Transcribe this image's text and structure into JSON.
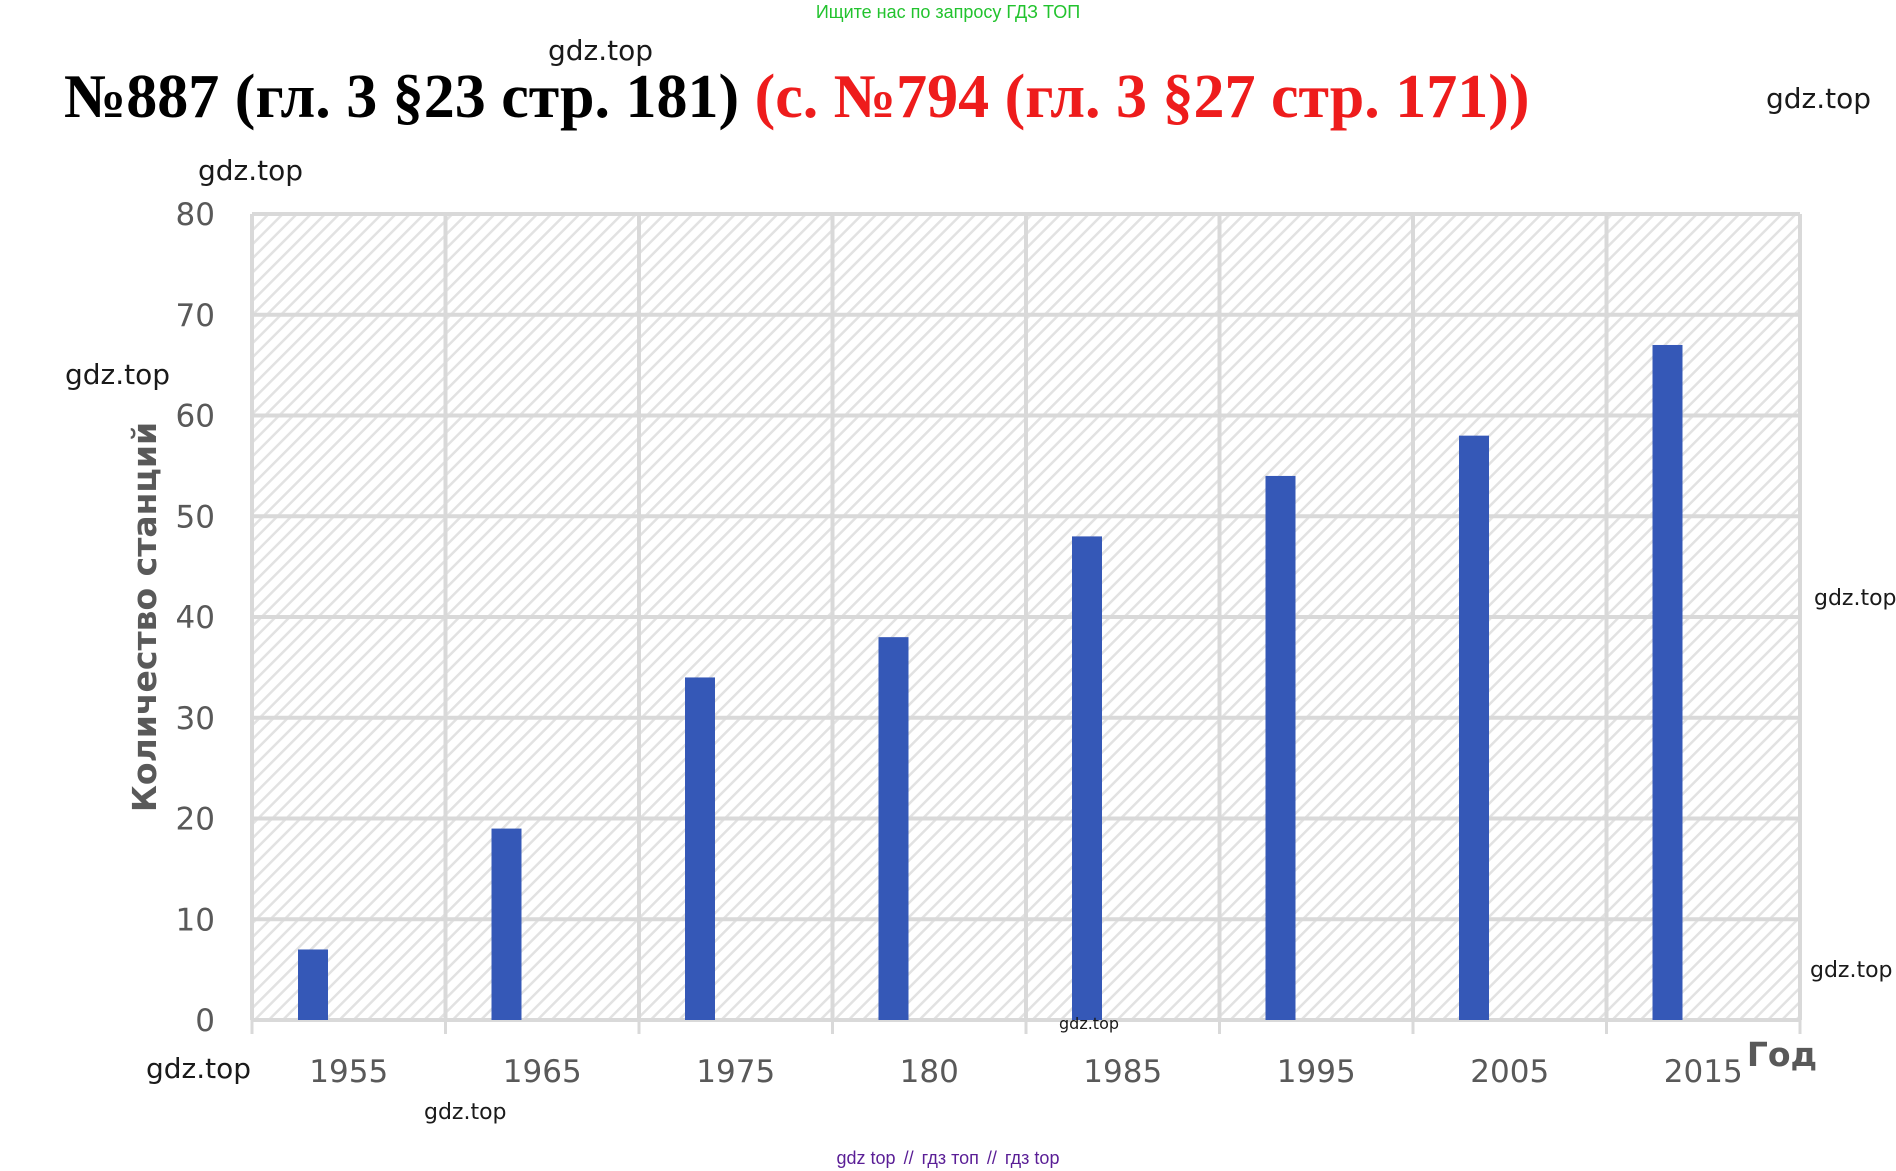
{
  "banner": "Ищите нас по запросу ГДЗ ТОП",
  "heading": {
    "main": "№887 (гл. 3 §23 стр. 181)",
    "alt": "(с. №794 (гл. 3 §27 стр. 171))"
  },
  "watermark": "gdz.top",
  "bottom_links": [
    "gdz top",
    "гдз топ",
    "гдз top"
  ],
  "bottom_separator": "//",
  "colors": {
    "bar": "#3558b7",
    "grid": "#d9d9d9",
    "hatch": "#e2e2e2",
    "heading_alt": "#ee1c1c",
    "banner": "#22c32e",
    "links": "#5a1e96"
  },
  "chart_data": {
    "type": "bar",
    "categories": [
      "1955",
      "1965",
      "1975",
      "180",
      "1985",
      "1995",
      "2005",
      "2015"
    ],
    "series": [
      {
        "values": [
          7,
          19,
          34,
          38,
          48,
          54,
          58,
          67
        ]
      }
    ],
    "xlabel": "Год",
    "ylabel": "Количество станций",
    "ylim": [
      0,
      80
    ],
    "yticks": [
      0,
      10,
      20,
      30,
      40,
      50,
      60,
      70,
      80
    ],
    "grid": true,
    "legend": "none"
  }
}
